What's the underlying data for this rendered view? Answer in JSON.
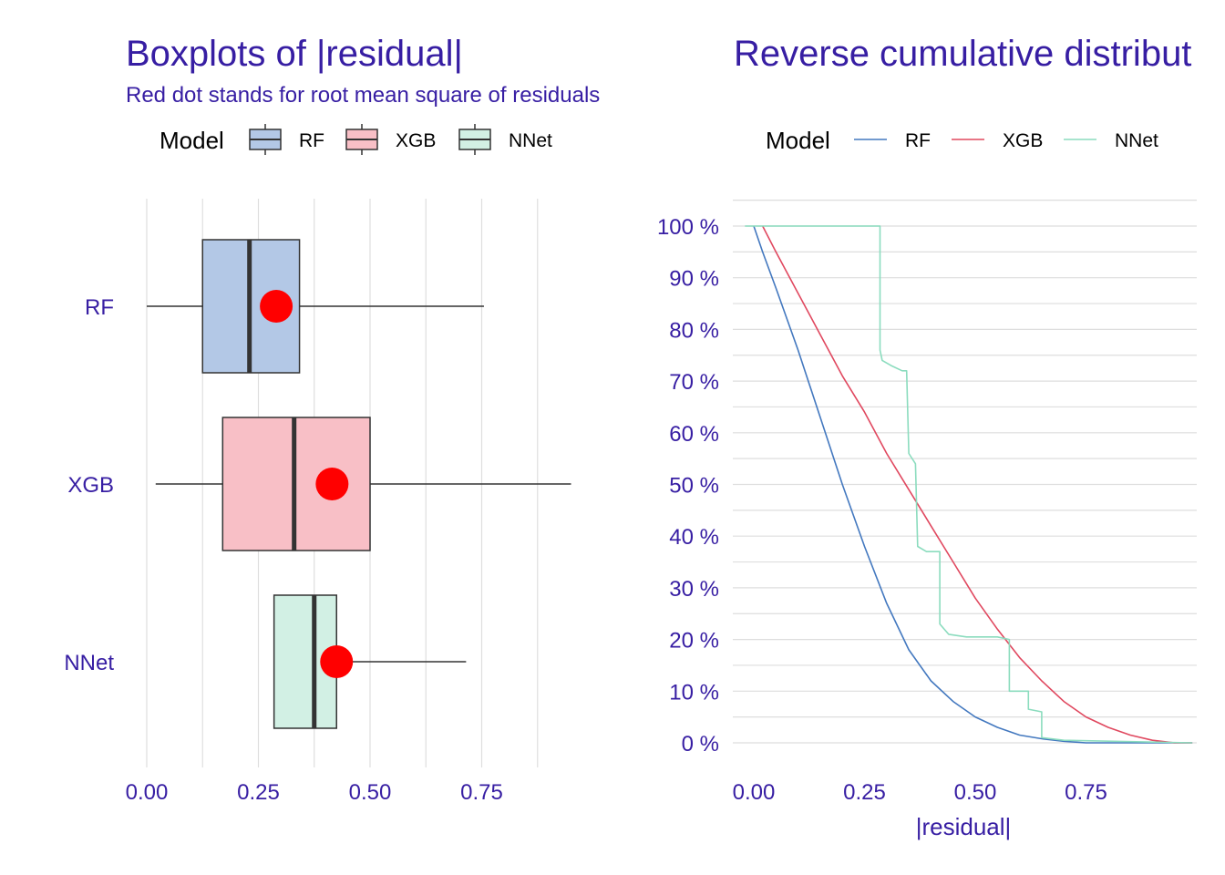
{
  "colors": {
    "text": "#371ea3",
    "grid": "#dedede",
    "RF": "#4378bf",
    "XGB": "#ae2c87",
    "XGB_line": "#e0485f",
    "NNet": "#8bdcbe",
    "RF_fill": "#b3c8e6",
    "XGB_fill": "#f8bfc6",
    "NNet_fill": "#d2f0e4",
    "rmse_dot": "#ff0000"
  },
  "chart_data": [
    {
      "type": "boxplot",
      "title": "Boxplots of |residual|",
      "subtitle": "Red dot stands for root mean square of residuals",
      "legend_title": "Model",
      "legend_position": "top",
      "categories": [
        "RF",
        "XGB",
        "NNet"
      ],
      "xlim": [
        0,
        0.95
      ],
      "x_ticks": [
        "0.00",
        "0.25",
        "0.50",
        "0.75"
      ],
      "x_tick_values": [
        0,
        0.25,
        0.5,
        0.75
      ],
      "grid": true,
      "boxes": [
        {
          "name": "RF",
          "whisker_low": 0.0,
          "q1": 0.125,
          "median": 0.23,
          "q3": 0.342,
          "whisker_high": 0.755,
          "rmse": 0.29
        },
        {
          "name": "XGB",
          "whisker_low": 0.02,
          "q1": 0.17,
          "median": 0.33,
          "q3": 0.5,
          "whisker_high": 0.95,
          "rmse": 0.415
        },
        {
          "name": "NNet",
          "whisker_low": 0.285,
          "q1": 0.285,
          "median": 0.375,
          "q3": 0.425,
          "whisker_high": 0.715,
          "rmse": 0.425
        }
      ]
    },
    {
      "type": "line",
      "title": "Reverse cumulative distribut",
      "legend_title": "Model",
      "legend_position": "top",
      "xlabel": "|residual|",
      "xlim": [
        -0.02,
        0.99
      ],
      "ylim": [
        -5,
        105
      ],
      "x_ticks": [
        "0.00",
        "0.25",
        "0.50",
        "0.75"
      ],
      "x_tick_values": [
        0,
        0.25,
        0.5,
        0.75
      ],
      "y_ticks": [
        "0 %",
        "10 %",
        "20 %",
        "30 %",
        "40 %",
        "50 %",
        "60 %",
        "70 %",
        "80 %",
        "90 %",
        "100 %"
      ],
      "y_tick_values": [
        0,
        10,
        20,
        30,
        40,
        50,
        60,
        70,
        80,
        90,
        100
      ],
      "grid": true,
      "series": [
        {
          "name": "RF",
          "x": [
            0.0,
            0.02,
            0.05,
            0.1,
            0.15,
            0.2,
            0.25,
            0.3,
            0.35,
            0.4,
            0.45,
            0.5,
            0.55,
            0.6,
            0.65,
            0.7,
            0.75,
            0.99
          ],
          "y": [
            100,
            95,
            88,
            76,
            63,
            50,
            38,
            27,
            18,
            12,
            8,
            5,
            3,
            1.5,
            0.8,
            0.3,
            0,
            0
          ]
        },
        {
          "name": "XGB",
          "x": [
            0.02,
            0.05,
            0.1,
            0.15,
            0.2,
            0.25,
            0.3,
            0.35,
            0.4,
            0.45,
            0.5,
            0.55,
            0.6,
            0.65,
            0.7,
            0.75,
            0.8,
            0.85,
            0.9,
            0.95,
            0.99
          ],
          "y": [
            100,
            95,
            87,
            79,
            71,
            64,
            56,
            49,
            42,
            35,
            28,
            22,
            16.5,
            12,
            8,
            5,
            3,
            1.5,
            0.5,
            0,
            0
          ]
        },
        {
          "name": "NNet",
          "x": [
            -0.02,
            0.285,
            0.285,
            0.29,
            0.31,
            0.335,
            0.345,
            0.35,
            0.365,
            0.37,
            0.39,
            0.42,
            0.42,
            0.44,
            0.48,
            0.55,
            0.577,
            0.577,
            0.62,
            0.62,
            0.65,
            0.65,
            0.7,
            0.99
          ],
          "y": [
            100,
            100,
            76,
            74,
            73,
            72,
            72,
            56,
            54,
            38,
            37,
            37,
            23,
            21,
            20.5,
            20.5,
            20,
            10,
            10,
            6.5,
            6,
            1,
            0.5,
            0
          ]
        }
      ]
    }
  ]
}
